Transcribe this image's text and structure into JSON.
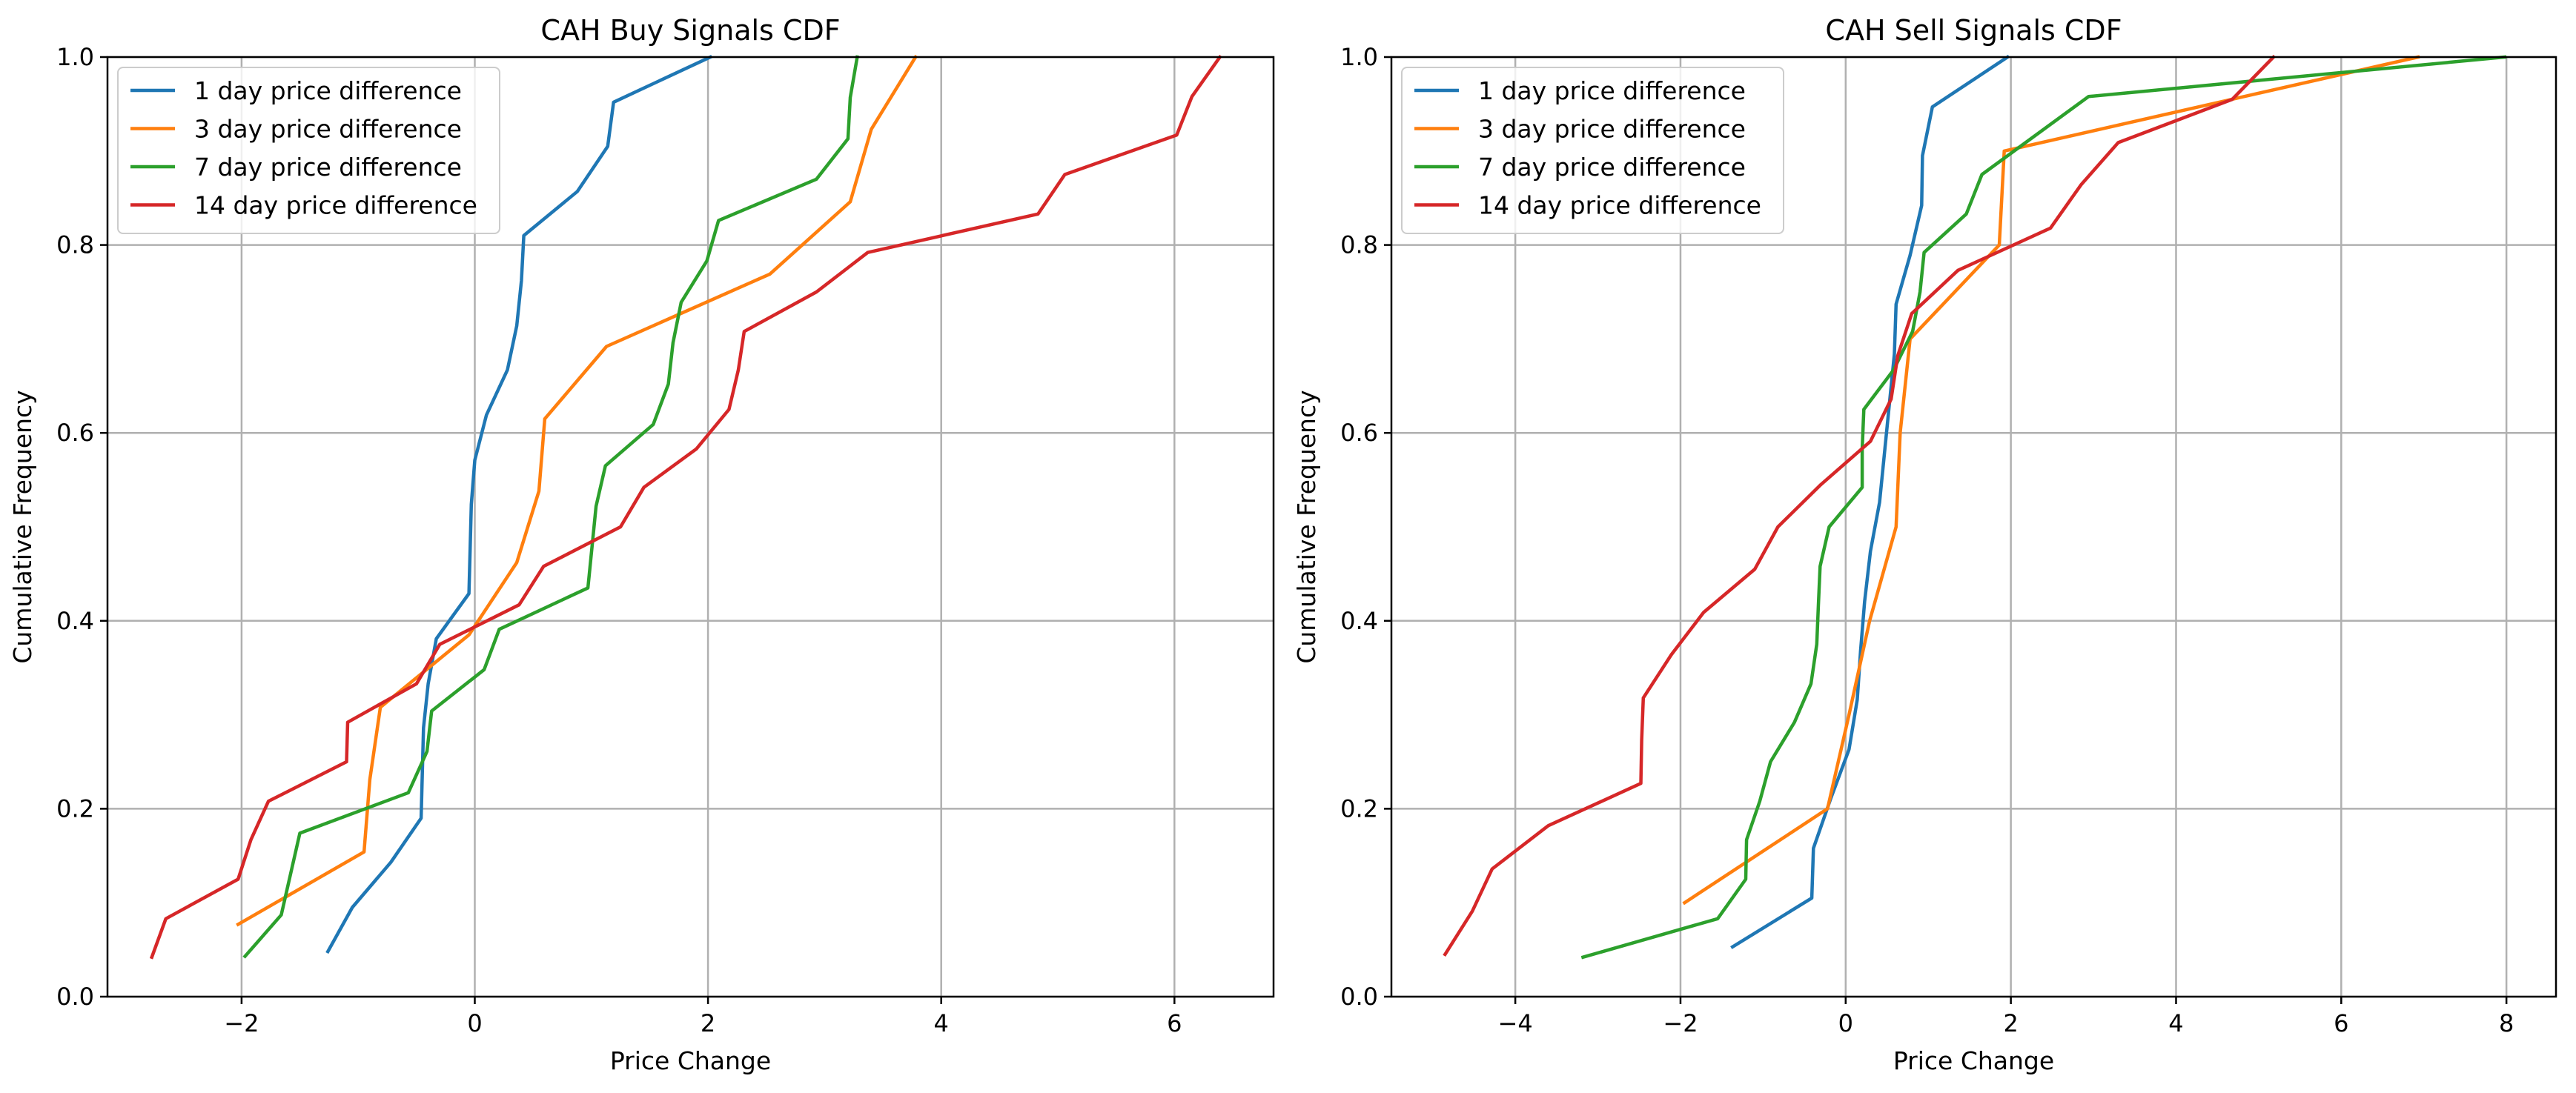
{
  "chart_data": [
    {
      "type": "line",
      "title": "CAH Buy Signals CDF",
      "xlabel": "Price Change",
      "ylabel": "Cumulative Frequency",
      "xlim": [
        -3.15,
        6.85
      ],
      "ylim": [
        0.0,
        1.0
      ],
      "x_ticks": [
        -2,
        0,
        2,
        4,
        6
      ],
      "x_tick_labels": [
        "−2",
        "0",
        "2",
        "4",
        "6"
      ],
      "y_ticks": [
        0.0,
        0.2,
        0.4,
        0.6,
        0.8,
        1.0
      ],
      "y_tick_labels": [
        "0.0",
        "0.2",
        "0.4",
        "0.6",
        "0.8",
        "1.0"
      ],
      "grid": true,
      "legend_position": "top-left",
      "series": [
        {
          "name": "1 day price difference",
          "color": "#1f77b4",
          "points": [
            [
              -1.26,
              0.048
            ],
            [
              -1.05,
              0.095
            ],
            [
              -0.72,
              0.143
            ],
            [
              -0.46,
              0.19
            ],
            [
              -0.44,
              0.286
            ],
            [
              -0.4,
              0.333
            ],
            [
              -0.33,
              0.381
            ],
            [
              -0.05,
              0.429
            ],
            [
              -0.04,
              0.476
            ],
            [
              -0.03,
              0.524
            ],
            [
              0.0,
              0.571
            ],
            [
              0.1,
              0.619
            ],
            [
              0.28,
              0.667
            ],
            [
              0.36,
              0.714
            ],
            [
              0.4,
              0.762
            ],
            [
              0.42,
              0.81
            ],
            [
              0.88,
              0.857
            ],
            [
              1.14,
              0.905
            ],
            [
              1.19,
              0.952
            ],
            [
              2.02,
              1.0
            ]
          ]
        },
        {
          "name": "3 day price difference",
          "color": "#ff7f0e",
          "points": [
            [
              -2.03,
              0.077
            ],
            [
              -0.95,
              0.154
            ],
            [
              -0.9,
              0.231
            ],
            [
              -0.81,
              0.308
            ],
            [
              -0.05,
              0.385
            ],
            [
              0.36,
              0.462
            ],
            [
              0.55,
              0.538
            ],
            [
              0.6,
              0.615
            ],
            [
              1.13,
              0.692
            ],
            [
              2.53,
              0.769
            ],
            [
              3.22,
              0.846
            ],
            [
              3.4,
              0.923
            ],
            [
              3.78,
              1.0
            ]
          ]
        },
        {
          "name": "7 day price difference",
          "color": "#2ca02c",
          "points": [
            [
              -1.97,
              0.043
            ],
            [
              -1.66,
              0.087
            ],
            [
              -1.5,
              0.174
            ],
            [
              -0.57,
              0.217
            ],
            [
              -0.41,
              0.261
            ],
            [
              -0.37,
              0.304
            ],
            [
              0.08,
              0.348
            ],
            [
              0.21,
              0.391
            ],
            [
              0.97,
              0.435
            ],
            [
              1.04,
              0.522
            ],
            [
              1.12,
              0.565
            ],
            [
              1.53,
              0.609
            ],
            [
              1.66,
              0.652
            ],
            [
              1.7,
              0.696
            ],
            [
              1.77,
              0.739
            ],
            [
              1.99,
              0.783
            ],
            [
              2.09,
              0.826
            ],
            [
              2.93,
              0.87
            ],
            [
              3.2,
              0.913
            ],
            [
              3.22,
              0.957
            ],
            [
              3.28,
              1.0
            ]
          ]
        },
        {
          "name": "14 day price difference",
          "color": "#d62728",
          "points": [
            [
              -2.77,
              0.042
            ],
            [
              -2.65,
              0.083
            ],
            [
              -2.03,
              0.125
            ],
            [
              -1.92,
              0.167
            ],
            [
              -1.77,
              0.208
            ],
            [
              -1.1,
              0.25
            ],
            [
              -1.09,
              0.292
            ],
            [
              -0.5,
              0.333
            ],
            [
              -0.3,
              0.375
            ],
            [
              0.38,
              0.417
            ],
            [
              0.59,
              0.458
            ],
            [
              1.25,
              0.5
            ],
            [
              1.45,
              0.542
            ],
            [
              1.9,
              0.583
            ],
            [
              2.18,
              0.625
            ],
            [
              2.26,
              0.667
            ],
            [
              2.31,
              0.708
            ],
            [
              2.93,
              0.75
            ],
            [
              3.37,
              0.792
            ],
            [
              4.83,
              0.833
            ],
            [
              5.06,
              0.875
            ],
            [
              6.02,
              0.917
            ],
            [
              6.15,
              0.958
            ],
            [
              6.39,
              1.0
            ]
          ]
        }
      ]
    },
    {
      "type": "line",
      "title": "CAH Sell Signals CDF",
      "xlabel": "Price Change",
      "ylabel": "Cumulative Frequency",
      "xlim": [
        -5.5,
        8.6
      ],
      "ylim": [
        0.0,
        1.0
      ],
      "x_ticks": [
        -4,
        -2,
        0,
        2,
        4,
        6,
        8
      ],
      "x_tick_labels": [
        "−4",
        "−2",
        "0",
        "2",
        "4",
        "6",
        "8"
      ],
      "y_ticks": [
        0.0,
        0.2,
        0.4,
        0.6,
        0.8,
        1.0
      ],
      "y_tick_labels": [
        "0.0",
        "0.2",
        "0.4",
        "0.6",
        "0.8",
        "1.0"
      ],
      "grid": true,
      "legend_position": "top-left",
      "series": [
        {
          "name": "1 day price difference",
          "color": "#1f77b4",
          "points": [
            [
              -1.37,
              0.053
            ],
            [
              -0.41,
              0.105
            ],
            [
              -0.39,
              0.158
            ],
            [
              -0.18,
              0.211
            ],
            [
              0.04,
              0.263
            ],
            [
              0.14,
              0.316
            ],
            [
              0.18,
              0.368
            ],
            [
              0.23,
              0.421
            ],
            [
              0.3,
              0.474
            ],
            [
              0.41,
              0.526
            ],
            [
              0.47,
              0.579
            ],
            [
              0.53,
              0.632
            ],
            [
              0.59,
              0.684
            ],
            [
              0.61,
              0.737
            ],
            [
              0.78,
              0.789
            ],
            [
              0.92,
              0.842
            ],
            [
              0.93,
              0.895
            ],
            [
              1.05,
              0.947
            ],
            [
              1.96,
              1.0
            ]
          ]
        },
        {
          "name": "3 day price difference",
          "color": "#ff7f0e",
          "points": [
            [
              -1.95,
              0.1
            ],
            [
              -0.22,
              0.2
            ],
            [
              0.04,
              0.3
            ],
            [
              0.29,
              0.4
            ],
            [
              0.61,
              0.5
            ],
            [
              0.66,
              0.6
            ],
            [
              0.78,
              0.7
            ],
            [
              1.86,
              0.8
            ],
            [
              1.92,
              0.9
            ],
            [
              6.93,
              1.0
            ]
          ]
        },
        {
          "name": "7 day price difference",
          "color": "#2ca02c",
          "points": [
            [
              -3.18,
              0.042
            ],
            [
              -1.55,
              0.083
            ],
            [
              -1.21,
              0.125
            ],
            [
              -1.2,
              0.167
            ],
            [
              -1.04,
              0.208
            ],
            [
              -0.91,
              0.25
            ],
            [
              -0.62,
              0.292
            ],
            [
              -0.42,
              0.333
            ],
            [
              -0.35,
              0.375
            ],
            [
              -0.33,
              0.417
            ],
            [
              -0.31,
              0.458
            ],
            [
              -0.2,
              0.5
            ],
            [
              0.2,
              0.542
            ],
            [
              0.2,
              0.583
            ],
            [
              0.22,
              0.625
            ],
            [
              0.58,
              0.667
            ],
            [
              0.81,
              0.708
            ],
            [
              0.9,
              0.75
            ],
            [
              0.95,
              0.792
            ],
            [
              1.46,
              0.833
            ],
            [
              1.65,
              0.875
            ],
            [
              2.94,
              0.958
            ],
            [
              7.98,
              1.0
            ]
          ]
        },
        {
          "name": "14 day price difference",
          "color": "#d62728",
          "points": [
            [
              -4.85,
              0.045
            ],
            [
              -4.52,
              0.091
            ],
            [
              -4.28,
              0.136
            ],
            [
              -3.6,
              0.182
            ],
            [
              -2.48,
              0.227
            ],
            [
              -2.47,
              0.273
            ],
            [
              -2.45,
              0.318
            ],
            [
              -2.11,
              0.364
            ],
            [
              -1.72,
              0.409
            ],
            [
              -1.1,
              0.455
            ],
            [
              -0.82,
              0.5
            ],
            [
              -0.3,
              0.545
            ],
            [
              0.3,
              0.591
            ],
            [
              0.55,
              0.636
            ],
            [
              0.63,
              0.682
            ],
            [
              0.8,
              0.727
            ],
            [
              1.36,
              0.773
            ],
            [
              2.48,
              0.818
            ],
            [
              2.85,
              0.864
            ],
            [
              3.3,
              0.909
            ],
            [
              4.68,
              0.955
            ],
            [
              5.18,
              1.0
            ]
          ]
        }
      ]
    }
  ]
}
